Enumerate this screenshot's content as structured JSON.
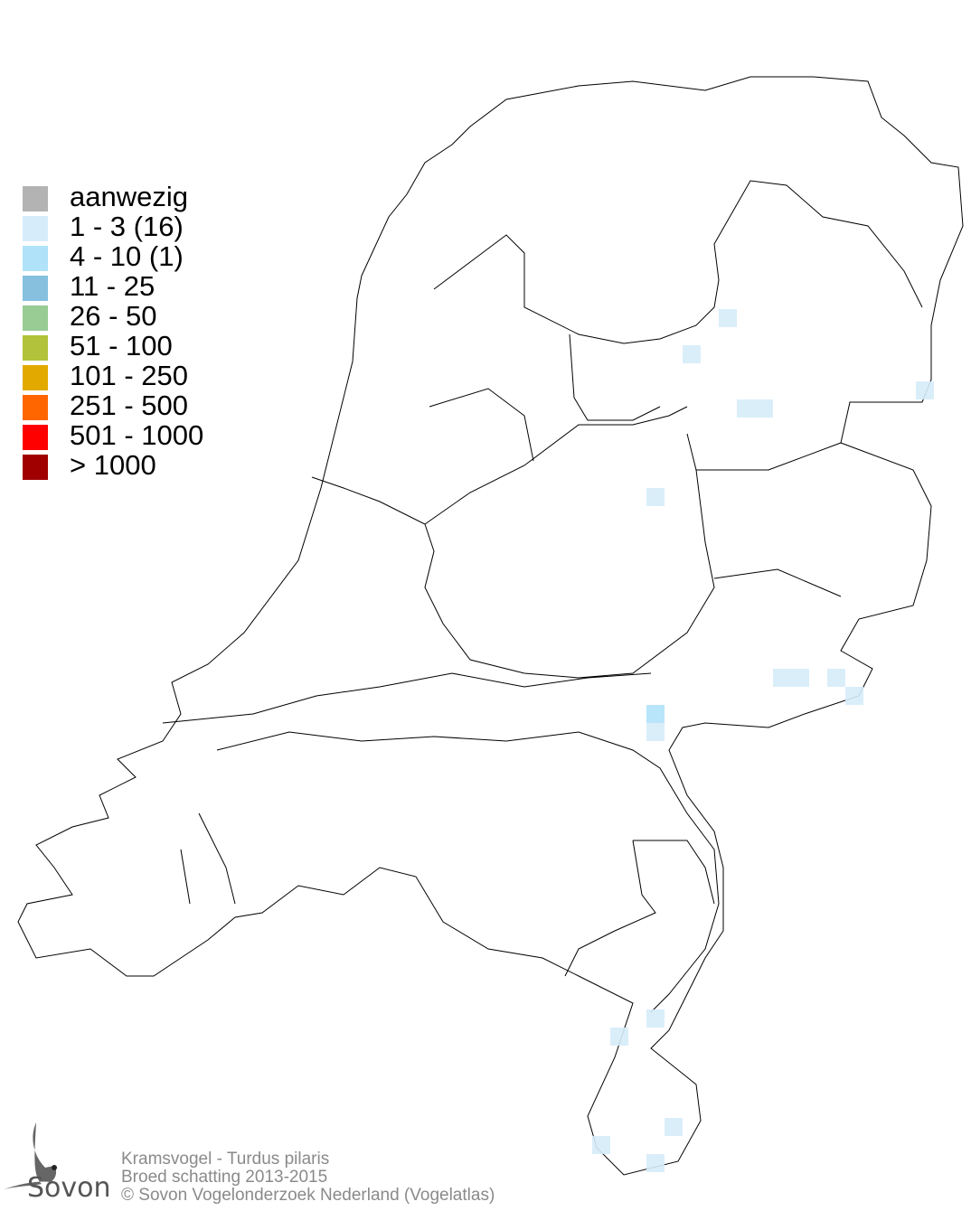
{
  "legend": {
    "items": [
      {
        "label": "aanwezig",
        "color": "#b3b3b3"
      },
      {
        "label": "1 - 3 (16)",
        "color": "#d6ecfa"
      },
      {
        "label": "4 - 10 (1)",
        "color": "#b0e2fa"
      },
      {
        "label": "11 - 25",
        "color": "#86c0de"
      },
      {
        "label": "26 - 50",
        "color": "#98cc94"
      },
      {
        "label": "51 - 100",
        "color": "#b2c23a"
      },
      {
        "label": "101 - 250",
        "color": "#e2aa00"
      },
      {
        "label": "251 - 500",
        "color": "#ff6600"
      },
      {
        "label": "501 - 1000",
        "color": "#ff0000"
      },
      {
        "label": "> 1000",
        "color": "#a00000"
      }
    ]
  },
  "footer": {
    "species": "Kramsvogel - Turdus pilaris",
    "period": "Broed schatting 2013-2015",
    "copyright": "© Sovon Vogelonderzoek Nederland (Vogelatlas)"
  },
  "logo": {
    "text": "Sovon"
  }
}
